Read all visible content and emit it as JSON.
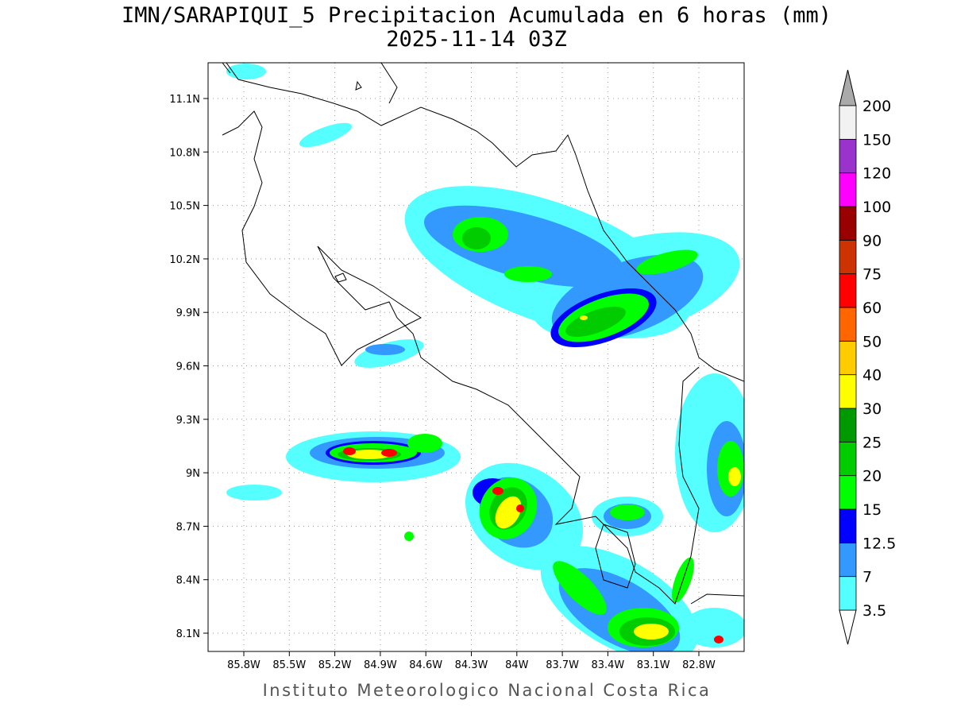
{
  "title": "IMN/SARAPIQUI_5 Precipitacion Acumulada en 6 horas (mm)",
  "subtitle": "2025-11-14 03Z",
  "map": {
    "lon_ticks": [
      "85.8W",
      "85.5W",
      "85.2W",
      "84.9W",
      "84.6W",
      "84.3W",
      "84W",
      "83.7W",
      "83.4W",
      "83.1W",
      "82.8W"
    ],
    "lat_ticks": [
      "11.1N",
      "10.8N",
      "10.5N",
      "10.2N",
      "9.9N",
      "9.6N",
      "9.3N",
      "9N",
      "8.7N",
      "8.4N",
      "8.1N"
    ]
  },
  "colorbar": {
    "levels": [
      "3.5",
      "7",
      "12.5",
      "15",
      "20",
      "25",
      "30",
      "40",
      "50",
      "60",
      "75",
      "90",
      "100",
      "120",
      "150",
      "200"
    ],
    "colors": [
      "#55ffff",
      "#3399ff",
      "#0000ff",
      "#00ff00",
      "#00cc00",
      "#009900",
      "#ffff00",
      "#ffcc00",
      "#ff6600",
      "#ff0000",
      "#cc3300",
      "#990000",
      "#ff00ff",
      "#9933cc",
      "#f2f2f2"
    ],
    "under_color": "#ffffff",
    "over_color": "#aaaaaa"
  },
  "footer": "Instituto Meteorologico Nacional Costa Rica"
}
